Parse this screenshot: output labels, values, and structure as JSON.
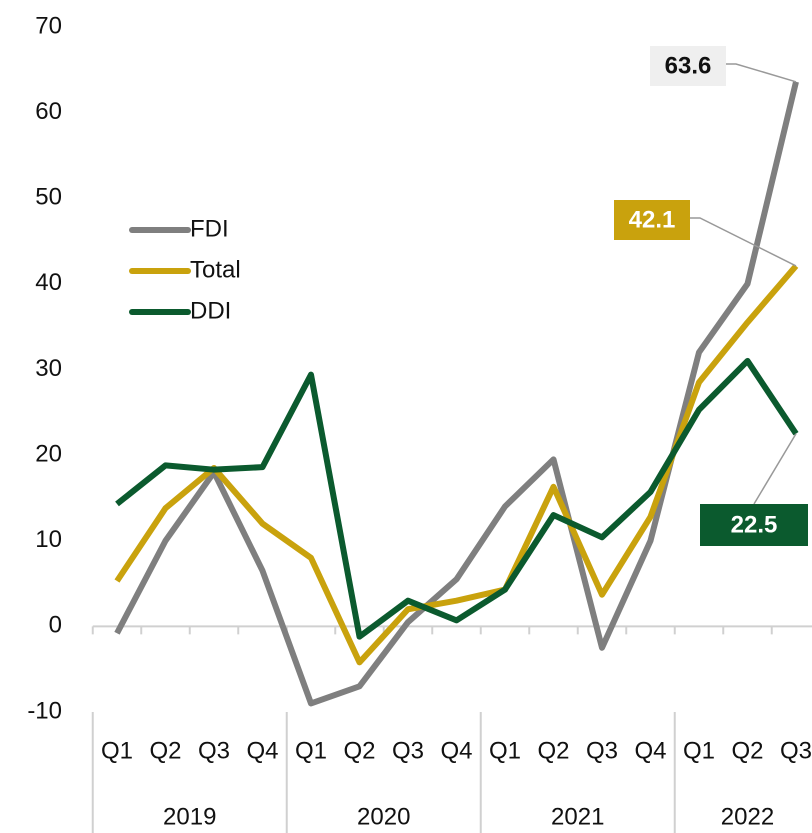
{
  "chart_data": {
    "type": "line",
    "categories": [
      "Q1",
      "Q2",
      "Q3",
      "Q4",
      "Q1",
      "Q2",
      "Q3",
      "Q4",
      "Q1",
      "Q2",
      "Q3",
      "Q4",
      "Q1",
      "Q2",
      "Q3"
    ],
    "category_groups": [
      {
        "name": "2019",
        "count": 4
      },
      {
        "name": "2020",
        "count": 4
      },
      {
        "name": "2021",
        "count": 4
      },
      {
        "name": "2022",
        "count": 3
      }
    ],
    "series": [
      {
        "name": "FDI",
        "color": "#7f7f7f",
        "values": [
          -0.8,
          10,
          18,
          6.5,
          -9,
          -7,
          0.5,
          5.5,
          14,
          19.5,
          -2.5,
          10,
          32,
          40,
          63.6
        ]
      },
      {
        "name": "Total",
        "color": "#c9a20d",
        "values": [
          5.3,
          13.8,
          18.5,
          12,
          8,
          -4.2,
          2,
          3,
          4.3,
          16.3,
          3.7,
          12.8,
          28.5,
          35.5,
          42.1
        ]
      },
      {
        "name": "DDI",
        "color": "#0b5a2e",
        "values": [
          14.3,
          18.8,
          18.3,
          18.6,
          29.4,
          -1.2,
          3,
          0.7,
          4.3,
          13,
          10.4,
          15.7,
          25.3,
          31,
          22.5
        ]
      }
    ],
    "ylim": [
      -10,
      70
    ],
    "yticks": [
      -10,
      0,
      10,
      20,
      30,
      40,
      50,
      60,
      70
    ],
    "legend": "left"
  }
}
